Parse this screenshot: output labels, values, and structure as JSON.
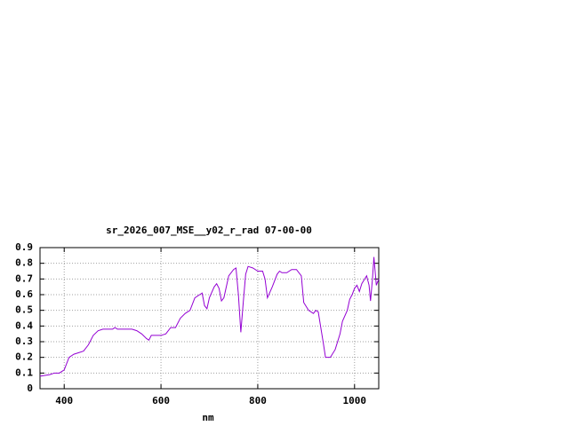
{
  "chart_data": {
    "type": "line",
    "title": "sr_2026_007_MSE__y02_r_rad 07-00-00",
    "xlabel": "nm",
    "x": [
      350,
      370,
      380,
      390,
      400,
      410,
      420,
      430,
      440,
      450,
      460,
      470,
      480,
      490,
      500,
      505,
      510,
      520,
      540,
      550,
      560,
      570,
      575,
      580,
      590,
      600,
      610,
      620,
      630,
      640,
      650,
      660,
      670,
      680,
      685,
      690,
      695,
      700,
      710,
      715,
      720,
      725,
      730,
      740,
      750,
      755,
      760,
      765,
      770,
      775,
      780,
      790,
      800,
      810,
      815,
      820,
      830,
      840,
      845,
      850,
      860,
      870,
      880,
      890,
      895,
      905,
      915,
      920,
      925,
      935,
      940,
      950,
      960,
      970,
      975,
      985,
      990,
      995,
      1000,
      1005,
      1010,
      1015,
      1025,
      1030,
      1033,
      1037,
      1040,
      1045,
      1050
    ],
    "series": [
      {
        "color": "#9400d3",
        "values": [
          0.08,
          0.09,
          0.1,
          0.1,
          0.12,
          0.2,
          0.22,
          0.23,
          0.24,
          0.28,
          0.34,
          0.37,
          0.38,
          0.38,
          0.38,
          0.39,
          0.38,
          0.38,
          0.38,
          0.37,
          0.35,
          0.32,
          0.31,
          0.34,
          0.34,
          0.34,
          0.35,
          0.39,
          0.39,
          0.45,
          0.48,
          0.5,
          0.58,
          0.6,
          0.61,
          0.53,
          0.51,
          0.58,
          0.65,
          0.67,
          0.64,
          0.56,
          0.58,
          0.72,
          0.76,
          0.77,
          0.6,
          0.36,
          0.55,
          0.73,
          0.78,
          0.77,
          0.75,
          0.75,
          0.7,
          0.58,
          0.65,
          0.73,
          0.75,
          0.74,
          0.74,
          0.76,
          0.76,
          0.72,
          0.55,
          0.5,
          0.48,
          0.5,
          0.49,
          0.3,
          0.2,
          0.2,
          0.25,
          0.35,
          0.43,
          0.5,
          0.57,
          0.6,
          0.64,
          0.66,
          0.62,
          0.67,
          0.72,
          0.66,
          0.56,
          0.7,
          0.84,
          0.66,
          0.7
        ]
      }
    ],
    "xlim": [
      350,
      1050
    ],
    "xticks": [
      400,
      600,
      800,
      1000
    ],
    "ylim": [
      0,
      0.9
    ],
    "yticks": [
      0,
      0.1,
      0.2,
      0.3,
      0.4,
      0.5,
      0.6,
      0.7,
      0.8,
      0.9
    ],
    "grid": true
  }
}
